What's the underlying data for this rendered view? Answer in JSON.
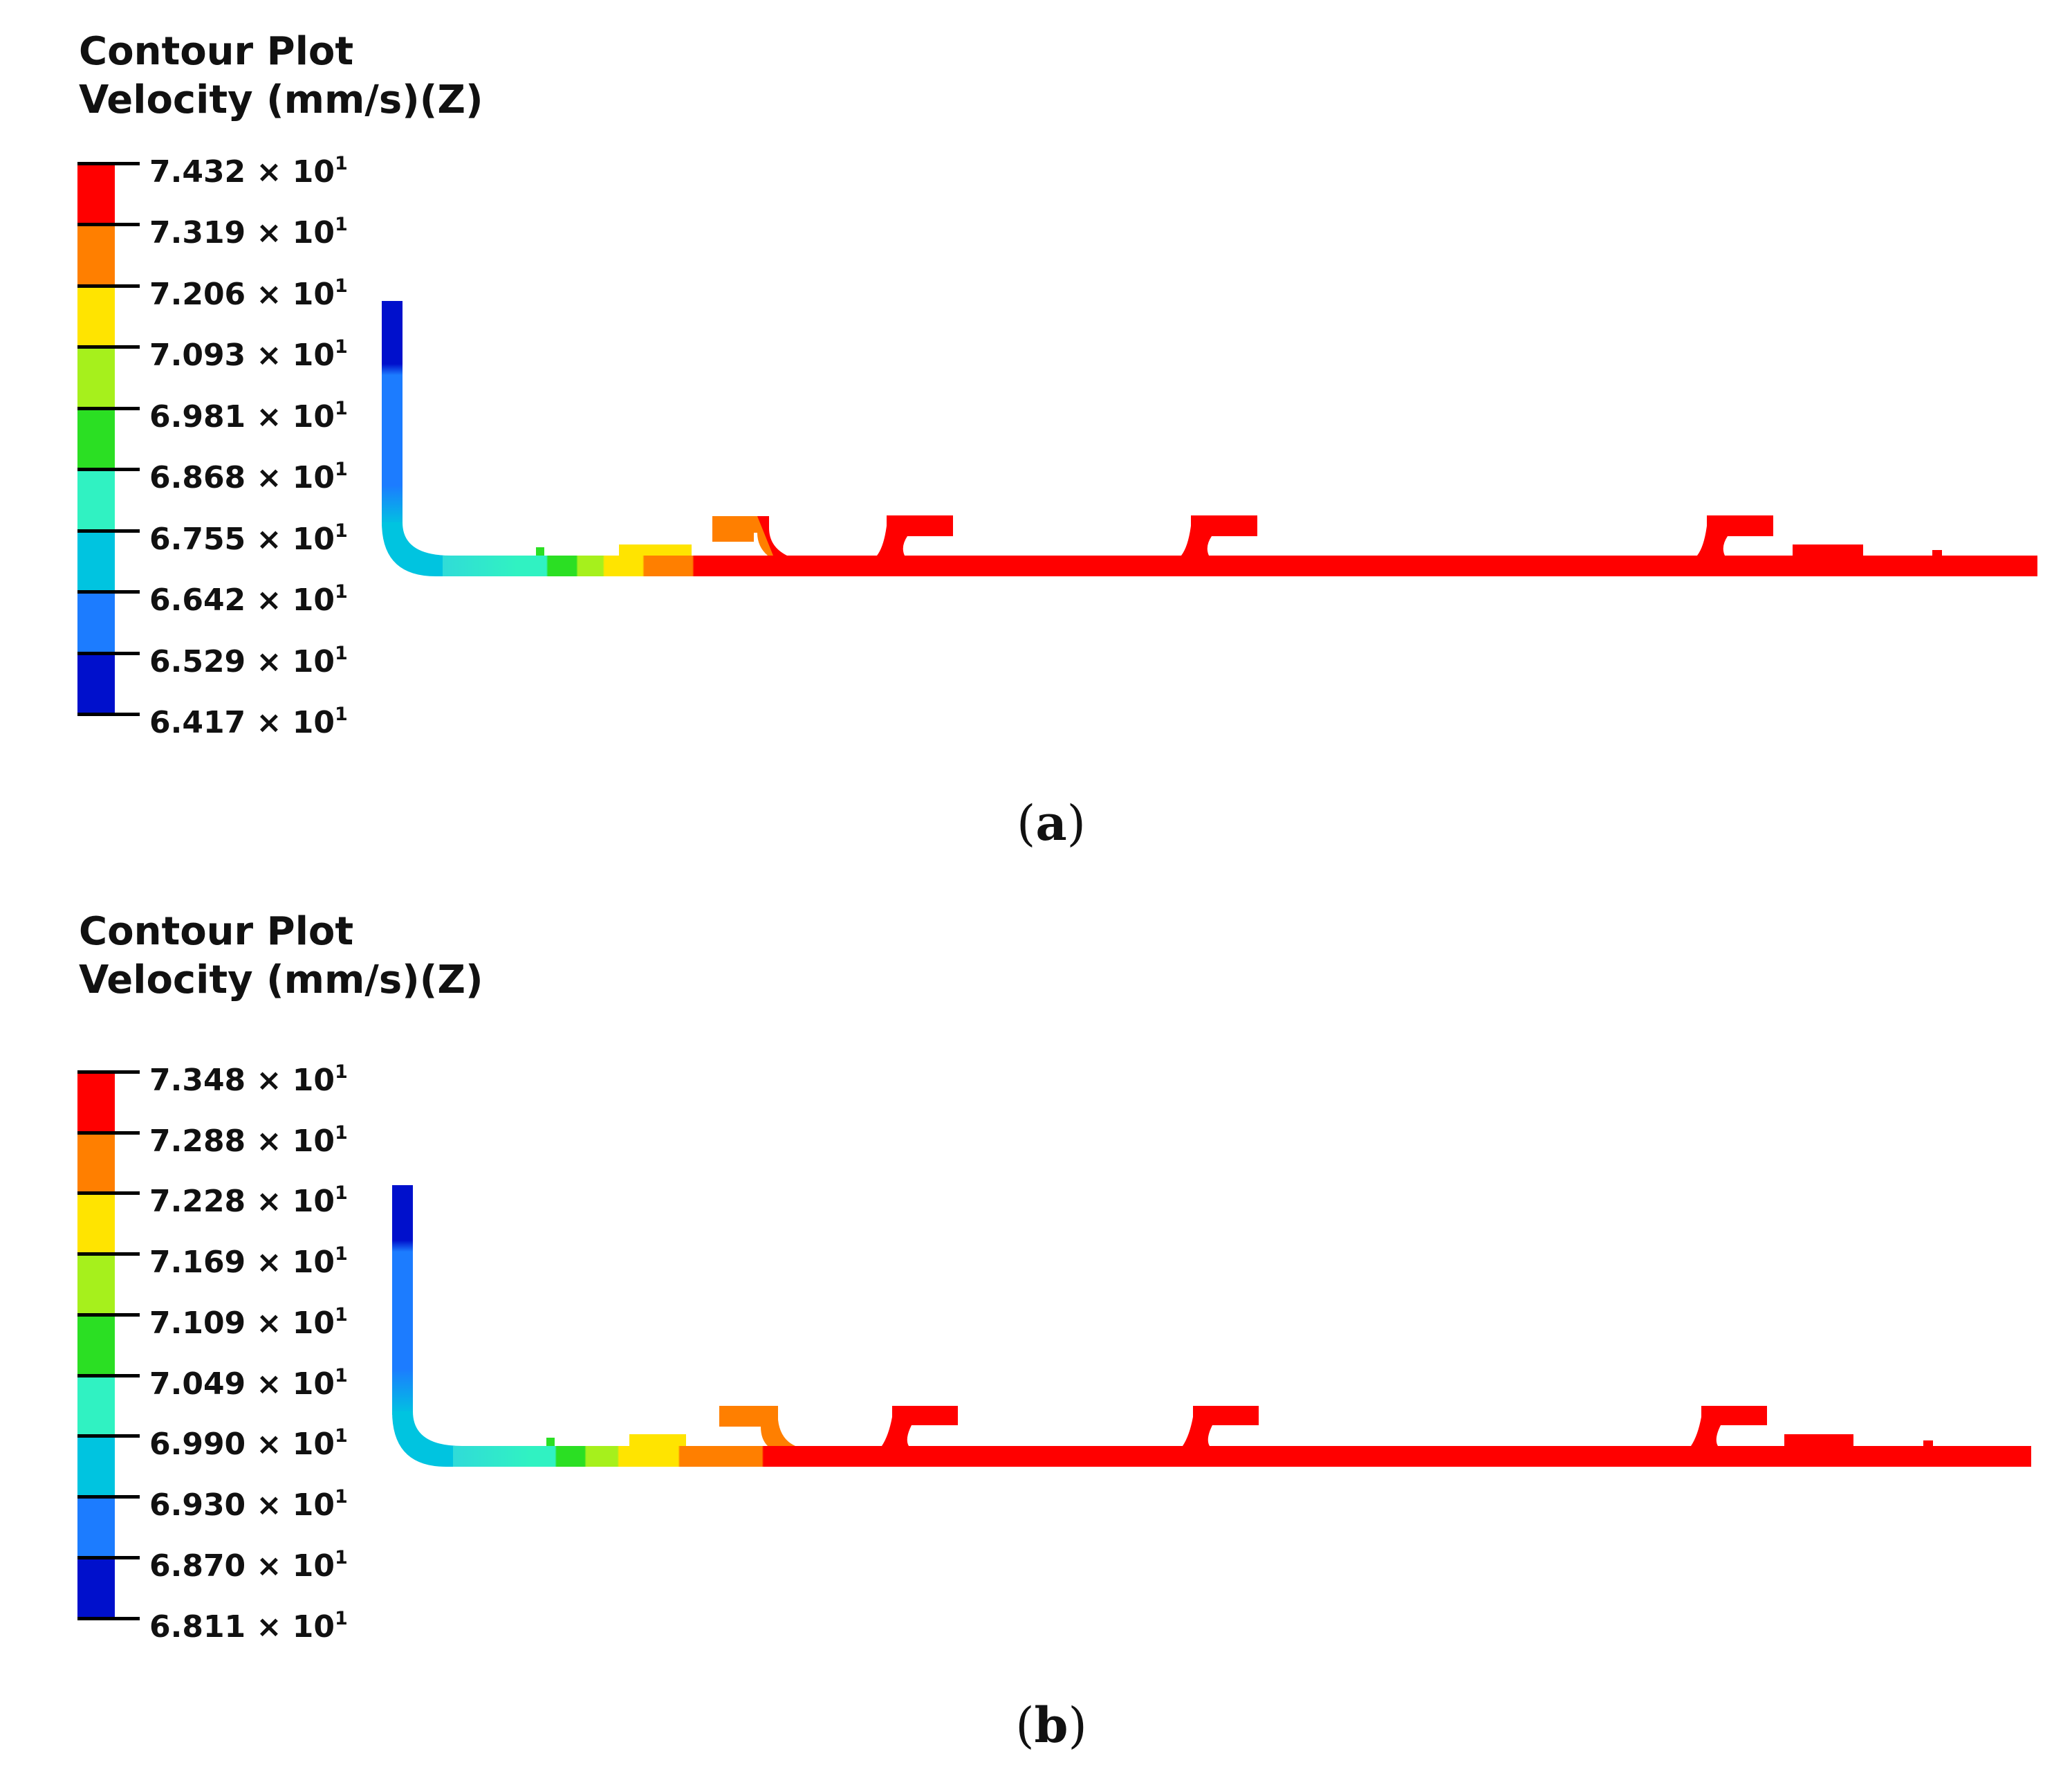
{
  "colors": [
    "#ff0000",
    "#ff7f00",
    "#ffe400",
    "#a6f01c",
    "#2bdf23",
    "#30f2c2",
    "#00c4e0",
    "#1c7cff",
    "#0010cc"
  ],
  "panels": [
    {
      "id": "a",
      "legend": {
        "title_line1": "Contour Plot",
        "title_line2": "Velocity (mm/s)(Z)",
        "ticks": [
          {
            "mantissa": "7.432",
            "times": "×",
            "base": "10",
            "exp": "1"
          },
          {
            "mantissa": "7.319",
            "times": "×",
            "base": "10",
            "exp": "1"
          },
          {
            "mantissa": "7.206",
            "times": "×",
            "base": "10",
            "exp": "1"
          },
          {
            "mantissa": "7.093",
            "times": "×",
            "base": "10",
            "exp": "1"
          },
          {
            "mantissa": "6.981",
            "times": "×",
            "base": "10",
            "exp": "1"
          },
          {
            "mantissa": "6.868",
            "times": "×",
            "base": "10",
            "exp": "1"
          },
          {
            "mantissa": "6.755",
            "times": "×",
            "base": "10",
            "exp": "1"
          },
          {
            "mantissa": "6.642",
            "times": "×",
            "base": "10",
            "exp": "1"
          },
          {
            "mantissa": "6.529",
            "times": "×",
            "base": "10",
            "exp": "1"
          },
          {
            "mantissa": "6.417",
            "times": "×",
            "base": "10",
            "exp": "1"
          }
        ]
      },
      "caption": {
        "open": "(",
        "letter": "a",
        "close": ")"
      }
    },
    {
      "id": "b",
      "legend": {
        "title_line1": "Contour Plot",
        "title_line2": "Velocity (mm/s)(Z)",
        "ticks": [
          {
            "mantissa": "7.348",
            "times": "×",
            "base": "10",
            "exp": "1"
          },
          {
            "mantissa": "7.288",
            "times": "×",
            "base": "10",
            "exp": "1"
          },
          {
            "mantissa": "7.228",
            "times": "×",
            "base": "10",
            "exp": "1"
          },
          {
            "mantissa": "7.169",
            "times": "×",
            "base": "10",
            "exp": "1"
          },
          {
            "mantissa": "7.109",
            "times": "×",
            "base": "10",
            "exp": "1"
          },
          {
            "mantissa": "7.049",
            "times": "×",
            "base": "10",
            "exp": "1"
          },
          {
            "mantissa": "6.990",
            "times": "×",
            "base": "10",
            "exp": "1"
          },
          {
            "mantissa": "6.930",
            "times": "×",
            "base": "10",
            "exp": "1"
          },
          {
            "mantissa": "6.870",
            "times": "×",
            "base": "10",
            "exp": "1"
          },
          {
            "mantissa": "6.811",
            "times": "×",
            "base": "10",
            "exp": "1"
          }
        ]
      },
      "caption": {
        "open": "(",
        "letter": "b",
        "close": ")"
      }
    }
  ]
}
